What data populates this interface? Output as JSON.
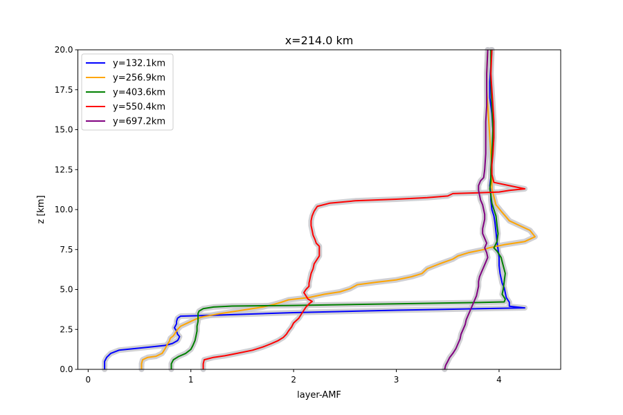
{
  "chart_data": {
    "type": "line",
    "title": "x=214.0 km",
    "xlabel": "layer-AMF",
    "ylabel": "z [km]",
    "xlim": [
      -0.1,
      4.6
    ],
    "ylim": [
      0,
      20
    ],
    "xticks": [
      "0",
      "1",
      "2",
      "3",
      "4"
    ],
    "xtick_values": [
      0,
      1,
      2,
      3,
      4
    ],
    "yticks": [
      "0.0",
      "2.5",
      "5.0",
      "7.5",
      "10.0",
      "12.5",
      "15.0",
      "17.5",
      "20.0"
    ],
    "ytick_values": [
      0,
      2.5,
      5,
      7.5,
      10,
      12.5,
      15,
      17.5,
      20
    ],
    "grid": false,
    "legend_position": "top-left",
    "uncertainty_band_color": "#c8c8cc",
    "series": [
      {
        "name": "y=132.1km",
        "color": "#0000ff",
        "points": [
          [
            0.16,
            0
          ],
          [
            0.16,
            0.5
          ],
          [
            0.18,
            0.75
          ],
          [
            0.22,
            1.0
          ],
          [
            0.3,
            1.2
          ],
          [
            0.45,
            1.3
          ],
          [
            0.6,
            1.4
          ],
          [
            0.75,
            1.5
          ],
          [
            0.82,
            1.62
          ],
          [
            0.87,
            1.8
          ],
          [
            0.88,
            1.9
          ],
          [
            0.89,
            2.05
          ],
          [
            0.87,
            2.2
          ],
          [
            0.86,
            2.4
          ],
          [
            0.84,
            2.6
          ],
          [
            0.86,
            2.85
          ],
          [
            0.86,
            3.0
          ],
          [
            0.87,
            3.2
          ],
          [
            0.9,
            3.33
          ],
          [
            1.2,
            3.38
          ],
          [
            2.0,
            3.55
          ],
          [
            3.0,
            3.7
          ],
          [
            4.0,
            3.82
          ],
          [
            4.25,
            3.85
          ],
          [
            4.1,
            3.95
          ],
          [
            4.1,
            4.2
          ],
          [
            4.07,
            4.5
          ],
          [
            4.06,
            4.8
          ],
          [
            4.05,
            5.1
          ],
          [
            4.03,
            5.4
          ],
          [
            4.02,
            5.7
          ],
          [
            4.01,
            6.0
          ],
          [
            4.0,
            6.5
          ],
          [
            4.0,
            7.0
          ],
          [
            3.99,
            7.5
          ],
          [
            3.98,
            8.0
          ],
          [
            3.97,
            8.6
          ],
          [
            3.96,
            9.2
          ],
          [
            3.95,
            9.6
          ],
          [
            3.93,
            10.0
          ],
          [
            3.92,
            10.6
          ],
          [
            3.92,
            11.0
          ],
          [
            3.91,
            11.5
          ],
          [
            3.92,
            12.0
          ],
          [
            3.93,
            13.0
          ],
          [
            3.94,
            14.0
          ],
          [
            3.94,
            15.0
          ],
          [
            3.93,
            16.0
          ],
          [
            3.91,
            17.0
          ],
          [
            3.91,
            18.0
          ],
          [
            3.92,
            19.0
          ],
          [
            3.93,
            20.0
          ]
        ]
      },
      {
        "name": "y=256.9km",
        "color": "#ffa500",
        "points": [
          [
            0.52,
            0
          ],
          [
            0.52,
            0.35
          ],
          [
            0.53,
            0.6
          ],
          [
            0.58,
            0.75
          ],
          [
            0.66,
            0.82
          ],
          [
            0.72,
            1.0
          ],
          [
            0.75,
            1.3
          ],
          [
            0.77,
            1.55
          ],
          [
            0.79,
            1.75
          ],
          [
            0.8,
            1.95
          ],
          [
            0.83,
            2.1
          ],
          [
            0.85,
            2.3
          ],
          [
            0.87,
            2.5
          ],
          [
            0.9,
            2.7
          ],
          [
            0.95,
            2.85
          ],
          [
            1.0,
            3.0
          ],
          [
            1.05,
            3.15
          ],
          [
            1.12,
            3.3
          ],
          [
            1.25,
            3.45
          ],
          [
            1.4,
            3.6
          ],
          [
            1.55,
            3.75
          ],
          [
            1.7,
            3.9
          ],
          [
            1.8,
            4.05
          ],
          [
            1.88,
            4.2
          ],
          [
            1.95,
            4.35
          ],
          [
            2.15,
            4.5
          ],
          [
            2.3,
            4.7
          ],
          [
            2.45,
            4.85
          ],
          [
            2.55,
            5.05
          ],
          [
            2.62,
            5.3
          ],
          [
            2.8,
            5.45
          ],
          [
            3.0,
            5.6
          ],
          [
            3.15,
            5.8
          ],
          [
            3.25,
            6.0
          ],
          [
            3.3,
            6.3
          ],
          [
            3.42,
            6.6
          ],
          [
            3.55,
            6.9
          ],
          [
            3.6,
            7.1
          ],
          [
            3.7,
            7.3
          ],
          [
            3.85,
            7.5
          ],
          [
            3.9,
            7.6
          ],
          [
            4.05,
            7.8
          ],
          [
            4.25,
            8.0
          ],
          [
            4.35,
            8.3
          ],
          [
            4.3,
            8.7
          ],
          [
            4.2,
            9.0
          ],
          [
            4.1,
            9.3
          ],
          [
            4.06,
            9.6
          ],
          [
            4.02,
            9.9
          ],
          [
            3.97,
            10.3
          ],
          [
            3.95,
            10.8
          ],
          [
            3.93,
            11.3
          ],
          [
            3.93,
            12.0
          ],
          [
            3.93,
            12.5
          ],
          [
            3.92,
            13.5
          ],
          [
            3.91,
            14.5
          ],
          [
            3.9,
            15.5
          ],
          [
            3.89,
            16.5
          ],
          [
            3.88,
            17.5
          ],
          [
            3.88,
            18.5
          ],
          [
            3.89,
            20.0
          ]
        ]
      },
      {
        "name": "y=403.6km",
        "color": "#008000",
        "points": [
          [
            0.81,
            0
          ],
          [
            0.81,
            0.35
          ],
          [
            0.83,
            0.6
          ],
          [
            0.88,
            0.8
          ],
          [
            0.95,
            1.0
          ],
          [
            1.0,
            1.25
          ],
          [
            1.02,
            1.5
          ],
          [
            1.04,
            1.8
          ],
          [
            1.05,
            2.1
          ],
          [
            1.06,
            2.4
          ],
          [
            1.06,
            2.7
          ],
          [
            1.07,
            3.0
          ],
          [
            1.07,
            3.3
          ],
          [
            1.07,
            3.5
          ],
          [
            1.08,
            3.65
          ],
          [
            1.12,
            3.8
          ],
          [
            1.22,
            3.9
          ],
          [
            1.4,
            3.96
          ],
          [
            2.0,
            4.0
          ],
          [
            3.0,
            4.1
          ],
          [
            3.8,
            4.18
          ],
          [
            4.05,
            4.22
          ],
          [
            4.06,
            4.4
          ],
          [
            4.03,
            4.7
          ],
          [
            4.04,
            5.0
          ],
          [
            4.05,
            5.5
          ],
          [
            4.06,
            6.0
          ],
          [
            4.04,
            6.5
          ],
          [
            4.02,
            7.0
          ],
          [
            3.98,
            7.4
          ],
          [
            3.95,
            7.6
          ],
          [
            3.98,
            8.0
          ],
          [
            3.99,
            8.5
          ],
          [
            3.98,
            9.0
          ],
          [
            3.97,
            9.6
          ],
          [
            3.95,
            10.0
          ],
          [
            3.93,
            10.4
          ],
          [
            3.92,
            10.9
          ],
          [
            3.91,
            11.3
          ],
          [
            3.92,
            11.8
          ],
          [
            3.92,
            12.5
          ],
          [
            3.93,
            13.5
          ],
          [
            3.94,
            15.0
          ],
          [
            3.93,
            16.5
          ],
          [
            3.92,
            18.0
          ],
          [
            3.92,
            20.0
          ]
        ]
      },
      {
        "name": "y=550.4km",
        "color": "#ff0000",
        "points": [
          [
            1.12,
            0
          ],
          [
            1.12,
            0.35
          ],
          [
            1.13,
            0.6
          ],
          [
            1.22,
            0.75
          ],
          [
            1.33,
            0.85
          ],
          [
            1.45,
            1.0
          ],
          [
            1.6,
            1.2
          ],
          [
            1.7,
            1.4
          ],
          [
            1.78,
            1.6
          ],
          [
            1.85,
            1.8
          ],
          [
            1.9,
            2.0
          ],
          [
            1.93,
            2.2
          ],
          [
            1.95,
            2.4
          ],
          [
            1.98,
            2.65
          ],
          [
            2.0,
            2.9
          ],
          [
            2.05,
            3.2
          ],
          [
            2.08,
            3.5
          ],
          [
            2.1,
            3.7
          ],
          [
            2.12,
            3.9
          ],
          [
            2.15,
            4.1
          ],
          [
            2.18,
            4.25
          ],
          [
            2.14,
            4.4
          ],
          [
            2.12,
            4.6
          ],
          [
            2.1,
            4.8
          ],
          [
            2.12,
            5.0
          ],
          [
            2.15,
            5.2
          ],
          [
            2.15,
            5.4
          ],
          [
            2.16,
            5.7
          ],
          [
            2.17,
            6.0
          ],
          [
            2.19,
            6.3
          ],
          [
            2.2,
            6.6
          ],
          [
            2.23,
            6.9
          ],
          [
            2.25,
            7.1
          ],
          [
            2.25,
            7.4
          ],
          [
            2.25,
            7.7
          ],
          [
            2.22,
            7.9
          ],
          [
            2.21,
            8.1
          ],
          [
            2.19,
            8.4
          ],
          [
            2.18,
            8.7
          ],
          [
            2.17,
            9.0
          ],
          [
            2.17,
            9.3
          ],
          [
            2.18,
            9.6
          ],
          [
            2.2,
            9.9
          ],
          [
            2.23,
            10.2
          ],
          [
            2.35,
            10.4
          ],
          [
            2.6,
            10.55
          ],
          [
            3.0,
            10.65
          ],
          [
            3.3,
            10.75
          ],
          [
            3.5,
            10.85
          ],
          [
            3.55,
            11.0
          ],
          [
            3.8,
            11.05
          ],
          [
            4.0,
            11.1
          ],
          [
            4.1,
            11.2
          ],
          [
            4.25,
            11.3
          ],
          [
            4.1,
            11.5
          ],
          [
            3.95,
            11.7
          ],
          [
            3.93,
            12.2
          ],
          [
            3.93,
            12.8
          ],
          [
            3.94,
            13.5
          ],
          [
            3.95,
            14.5
          ],
          [
            3.95,
            15.5
          ],
          [
            3.94,
            16.5
          ],
          [
            3.93,
            17.5
          ],
          [
            3.92,
            18.5
          ],
          [
            3.93,
            20.0
          ]
        ]
      },
      {
        "name": "y=697.2km",
        "color": "#800080",
        "points": [
          [
            3.47,
            0
          ],
          [
            3.48,
            0.25
          ],
          [
            3.5,
            0.5
          ],
          [
            3.52,
            0.75
          ],
          [
            3.55,
            1.0
          ],
          [
            3.58,
            1.3
          ],
          [
            3.6,
            1.6
          ],
          [
            3.62,
            1.9
          ],
          [
            3.63,
            2.2
          ],
          [
            3.65,
            2.5
          ],
          [
            3.67,
            2.8
          ],
          [
            3.68,
            3.1
          ],
          [
            3.7,
            3.4
          ],
          [
            3.72,
            3.7
          ],
          [
            3.74,
            4.0
          ],
          [
            3.76,
            4.3
          ],
          [
            3.78,
            4.6
          ],
          [
            3.79,
            4.9
          ],
          [
            3.8,
            5.2
          ],
          [
            3.8,
            5.5
          ],
          [
            3.81,
            5.8
          ],
          [
            3.83,
            6.1
          ],
          [
            3.85,
            6.4
          ],
          [
            3.87,
            6.7
          ],
          [
            3.89,
            7.0
          ],
          [
            3.88,
            7.3
          ],
          [
            3.86,
            7.6
          ],
          [
            3.88,
            7.9
          ],
          [
            3.86,
            8.2
          ],
          [
            3.84,
            8.5
          ],
          [
            3.84,
            8.8
          ],
          [
            3.85,
            9.1
          ],
          [
            3.86,
            9.4
          ],
          [
            3.86,
            9.7
          ],
          [
            3.85,
            10.0
          ],
          [
            3.84,
            10.3
          ],
          [
            3.82,
            10.6
          ],
          [
            3.81,
            10.9
          ],
          [
            3.8,
            11.2
          ],
          [
            3.8,
            11.5
          ],
          [
            3.82,
            11.8
          ],
          [
            3.85,
            12.0
          ],
          [
            3.86,
            12.5
          ],
          [
            3.87,
            13.5
          ],
          [
            3.87,
            14.5
          ],
          [
            3.87,
            15.5
          ],
          [
            3.88,
            16.5
          ],
          [
            3.88,
            17.5
          ],
          [
            3.88,
            18.5
          ],
          [
            3.89,
            20.0
          ]
        ]
      }
    ]
  }
}
